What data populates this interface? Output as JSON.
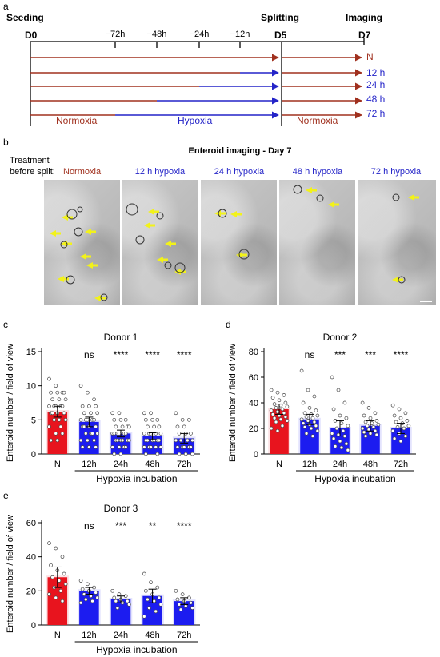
{
  "panel_a": {
    "letter": "a",
    "seeding": "Seeding",
    "splitting": "Splitting",
    "imaging": "Imaging",
    "d0": "D0",
    "d5": "D5",
    "d7": "D7",
    "ticks": [
      "−72h",
      "−48h",
      "−24h",
      "−12h"
    ],
    "rows": [
      "N",
      "12 h",
      "24 h",
      "48 h",
      "72 h"
    ],
    "normoxia": "Normoxia",
    "hypoxia": "Hypoxia",
    "normoxia2": "Normoxia",
    "colors": {
      "normoxia": "#a0301e",
      "hypoxia": "#2424c8"
    }
  },
  "panel_b": {
    "letter": "b",
    "title": "Enteroid imaging - Day 7",
    "treatment_label": "Treatment\nbefore split:",
    "conditions": [
      "Normoxia",
      "12 h hypoxia",
      "24 h hypoxia",
      "48 h hypoxia",
      "72 h hypoxia"
    ]
  },
  "chart_data": [
    {
      "type": "bar",
      "letter": "c",
      "title": "Donor 1",
      "categories": [
        "N",
        "12h",
        "24h",
        "48h",
        "72h"
      ],
      "values": [
        6.2,
        4.7,
        3.0,
        2.6,
        2.3
      ],
      "errors": [
        0.8,
        0.7,
        0.5,
        0.5,
        0.7
      ],
      "significance": [
        "",
        "ns",
        "****",
        "****",
        "****"
      ],
      "ylabel": "Enteroid number / field of view",
      "group_label": "Hypoxia incubation",
      "ylim": [
        0,
        15
      ],
      "yticks": [
        0,
        5,
        10,
        15
      ],
      "bar_colors": [
        "#e8141e",
        "#1c1cf0",
        "#1c1cf0",
        "#1c1cf0",
        "#1c1cf0"
      ],
      "points": [
        [
          11,
          10,
          9,
          9,
          9,
          9,
          8,
          8,
          8,
          7,
          7,
          7,
          7,
          7,
          6,
          6,
          6,
          6,
          5,
          5,
          5,
          4,
          4,
          3,
          3,
          2,
          2
        ],
        [
          10,
          9,
          8,
          7,
          7,
          7,
          6,
          6,
          6,
          5,
          5,
          5,
          5,
          5,
          4,
          4,
          4,
          4,
          3,
          3,
          3,
          3,
          2,
          2,
          2,
          1,
          1,
          1
        ],
        [
          6,
          6,
          5,
          5,
          5,
          4,
          4,
          4,
          4,
          3,
          3,
          3,
          3,
          3,
          3,
          2,
          2,
          2,
          2,
          2,
          2,
          1,
          1,
          1,
          1,
          0,
          0
        ],
        [
          6,
          6,
          5,
          5,
          5,
          4,
          4,
          4,
          3,
          3,
          3,
          3,
          3,
          2,
          2,
          2,
          2,
          2,
          2,
          1,
          1,
          1,
          1,
          1,
          0,
          0
        ],
        [
          6,
          5,
          5,
          4,
          4,
          3,
          3,
          3,
          2,
          2,
          2,
          2,
          1,
          1,
          1,
          1,
          1,
          0,
          0,
          0
        ]
      ]
    },
    {
      "type": "bar",
      "letter": "d",
      "title": "Donor 2",
      "categories": [
        "N",
        "12h",
        "24h",
        "48h",
        "72h"
      ],
      "values": [
        35,
        27,
        20,
        22,
        20
      ],
      "errors": [
        4,
        4,
        6,
        4,
        4
      ],
      "significance": [
        "",
        "ns",
        "***",
        "***",
        "****"
      ],
      "ylabel": "Enteroid number / field of view",
      "group_label": "Hypoxia incubation",
      "ylim": [
        0,
        80
      ],
      "yticks": [
        0,
        20,
        40,
        60,
        80
      ],
      "bar_colors": [
        "#e8141e",
        "#1c1cf0",
        "#1c1cf0",
        "#1c1cf0",
        "#1c1cf0"
      ],
      "points": [
        [
          50,
          48,
          46,
          44,
          42,
          40,
          39,
          38,
          37,
          36,
          35,
          34,
          33,
          32,
          31,
          30,
          29,
          28,
          27,
          26,
          25,
          22,
          20,
          18
        ],
        [
          65,
          50,
          45,
          40,
          36,
          34,
          32,
          31,
          30,
          29,
          28,
          27,
          26,
          25,
          24,
          23,
          22,
          21,
          20,
          18,
          16,
          14
        ],
        [
          60,
          50,
          40,
          35,
          30,
          28,
          26,
          24,
          22,
          20,
          18,
          16,
          15,
          14,
          12,
          10,
          8,
          6,
          5,
          3
        ],
        [
          40,
          36,
          32,
          30,
          28,
          26,
          25,
          24,
          23,
          22,
          21,
          20,
          19,
          18,
          17,
          16,
          15,
          14
        ],
        [
          38,
          35,
          32,
          30,
          28,
          26,
          25,
          24,
          22,
          21,
          20,
          18,
          16,
          14,
          12,
          10
        ]
      ]
    },
    {
      "type": "bar",
      "letter": "e",
      "title": "Donor 3",
      "categories": [
        "N",
        "12h",
        "24h",
        "48h",
        "72h"
      ],
      "values": [
        28,
        20,
        15,
        17,
        14
      ],
      "errors": [
        6,
        2,
        2,
        4,
        2
      ],
      "significance": [
        "",
        "ns",
        "***",
        "**",
        "****"
      ],
      "ylabel": "Enteroid number / field of view",
      "group_label": "Hypoxia incubation",
      "ylim": [
        0,
        60
      ],
      "yticks": [
        0,
        20,
        40,
        60
      ],
      "bar_colors": [
        "#e8141e",
        "#1c1cf0",
        "#1c1cf0",
        "#1c1cf0",
        "#1c1cf0"
      ],
      "points": [
        [
          48,
          45,
          40,
          35,
          32,
          30,
          28,
          26,
          24,
          22,
          20,
          18,
          16,
          14
        ],
        [
          26,
          24,
          22,
          21,
          20,
          19,
          18,
          17,
          16,
          15,
          14,
          13
        ],
        [
          20,
          18,
          17,
          16,
          15,
          14,
          14,
          13,
          12,
          10
        ],
        [
          30,
          25,
          22,
          20,
          18,
          16,
          15,
          14,
          12,
          10,
          8,
          5
        ],
        [
          20,
          18,
          16,
          15,
          14,
          13,
          12,
          11,
          10,
          9
        ]
      ]
    }
  ]
}
